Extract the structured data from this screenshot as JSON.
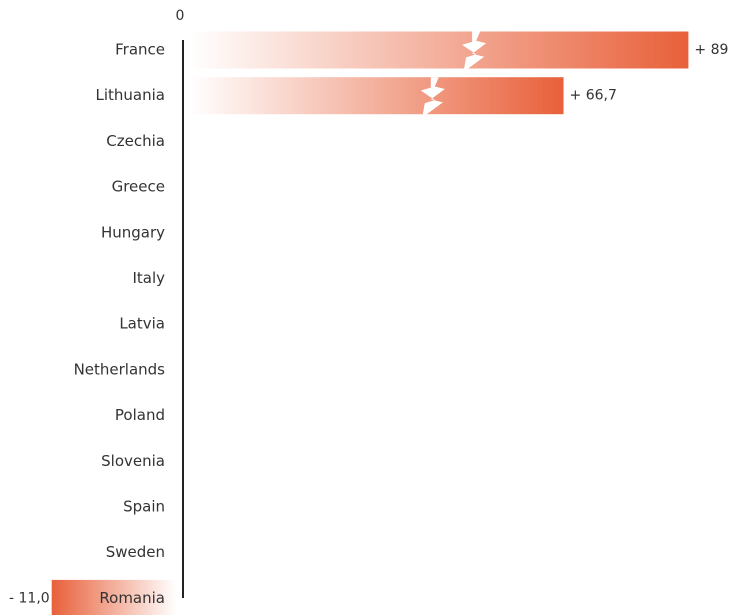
{
  "chart_data": {
    "type": "bar",
    "orientation": "horizontal",
    "zero_label": "0",
    "categories": [
      "France",
      "Lithuania",
      "Czechia",
      "Greece",
      "Hungary",
      "Italy",
      "Latvia",
      "Netherlands",
      "Poland",
      "Slovenia",
      "Spain",
      "Sweden",
      "Romania"
    ],
    "values": [
      89,
      66.7,
      0,
      0,
      0,
      0,
      0,
      0,
      0,
      0,
      0,
      0,
      -11.0
    ],
    "value_labels": [
      "+ 89",
      "+ 66,7",
      "",
      "",
      "",
      "",
      "",
      "",
      "",
      "",
      "",
      "",
      "- 11,0"
    ],
    "truncated_bars": [
      "France",
      "Lithuania"
    ],
    "colors": {
      "bar": "#e8603a",
      "bar_fade": "#ffffff",
      "axis": "#222222",
      "text": "#333333"
    }
  }
}
